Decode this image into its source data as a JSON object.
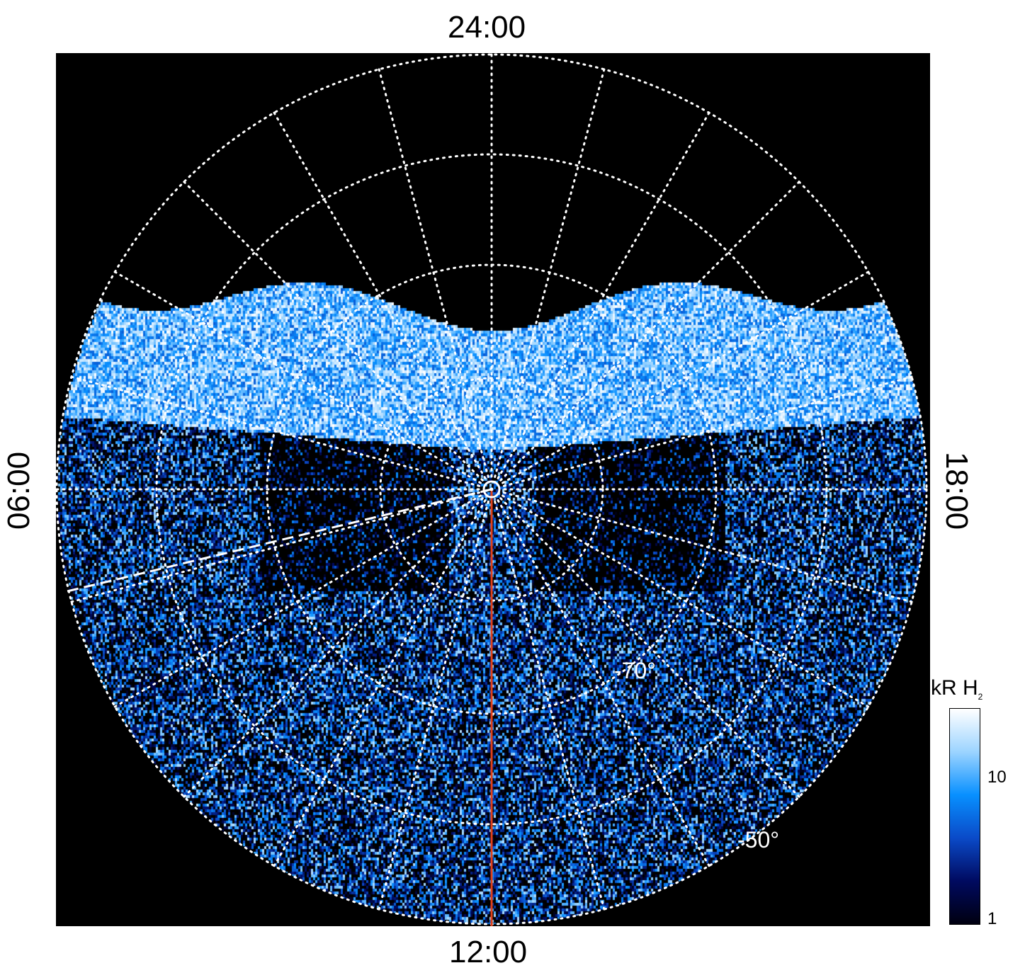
{
  "chart_data": {
    "type": "heatmap",
    "projection": "polar (south pole, local time vs latitude)",
    "time_labels": {
      "top": "24:00",
      "bottom": "12:00",
      "left": "06:00",
      "right": "18:00"
    },
    "latitude_labels": [
      "-70°",
      "-50°"
    ],
    "latitude_rings": [
      -80,
      -70,
      -60,
      -50
    ],
    "meridian_step_hours": 1,
    "colorbar": {
      "label": "kR H",
      "label_subscript": "2",
      "scale": "log",
      "range": [
        1,
        30
      ],
      "ticks": [
        {
          "value": 1,
          "label": "1"
        },
        {
          "value": 10,
          "label": "10"
        }
      ]
    },
    "colors": {
      "background": "#000000",
      "grid": "#ffffff",
      "noon_line": "#e0401a",
      "dashed_line": "#ffffff",
      "colormap": [
        "#000010",
        "#000a60",
        "#0a4ac8",
        "#0890ff",
        "#9cd4ff",
        "#ffffff"
      ]
    }
  }
}
